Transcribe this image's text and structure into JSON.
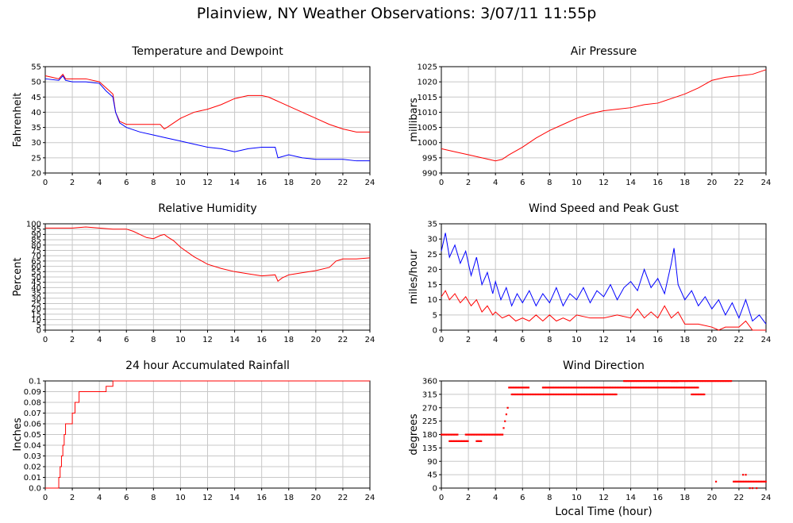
{
  "page": {
    "title": "Plainview, NY Weather Observations: 3/07/11 11:55p"
  },
  "colors": {
    "red": "#ff0000",
    "blue": "#0000ff"
  },
  "chart_data": [
    {
      "id": "temp",
      "type": "line",
      "title": "Temperature and Dewpoint",
      "xlabel": "",
      "ylabel": "Fahrenheit",
      "xlim": [
        0,
        24
      ],
      "ylim": [
        20,
        55
      ],
      "xticks": [
        "0",
        "2",
        "4",
        "6",
        "8",
        "10",
        "12",
        "14",
        "16",
        "18",
        "20",
        "22",
        "24"
      ],
      "yticks": [
        "20",
        "25",
        "30",
        "35",
        "40",
        "45",
        "50",
        "55"
      ],
      "grid": true,
      "legend": "none",
      "series": [
        {
          "color": "red",
          "x": [
            0,
            0.5,
            1,
            1.3,
            1.5,
            2,
            3,
            4,
            4.5,
            5,
            5.2,
            5.5,
            6,
            7,
            8,
            8.5,
            8.8,
            9,
            9.5,
            10,
            11,
            12,
            13,
            14,
            15,
            16,
            16.5,
            17,
            18,
            19,
            20,
            21,
            22,
            23,
            24
          ],
          "y": [
            52,
            51.5,
            51,
            52.5,
            51,
            51,
            51,
            50,
            48,
            46,
            40,
            37,
            36,
            36,
            36,
            36,
            34.5,
            35,
            36.5,
            38,
            40,
            41,
            42.5,
            44.5,
            45.5,
            45.5,
            45,
            44,
            42,
            40,
            38,
            36,
            34.5,
            33.5,
            33.5
          ]
        },
        {
          "color": "blue",
          "x": [
            0,
            1,
            1.3,
            1.5,
            2,
            3,
            4,
            4.5,
            5,
            5.2,
            5.5,
            6,
            7,
            8,
            9,
            10,
            11,
            12,
            13,
            14,
            15,
            16,
            17,
            17.2,
            18,
            19,
            20,
            21,
            22,
            23,
            24
          ],
          "y": [
            51,
            50.5,
            52,
            50.5,
            50,
            50,
            49.5,
            47,
            45,
            40,
            36.5,
            35,
            33.5,
            32.5,
            31.5,
            30.5,
            29.5,
            28.5,
            28,
            27,
            28,
            28.5,
            28.5,
            25,
            26,
            25,
            24.5,
            24.5,
            24.5,
            24,
            24
          ]
        }
      ]
    },
    {
      "id": "pressure",
      "type": "line",
      "title": "Air Pressure",
      "xlabel": "",
      "ylabel": "millibars",
      "xlim": [
        0,
        24
      ],
      "ylim": [
        990,
        1025
      ],
      "xticks": [
        "0",
        "2",
        "4",
        "6",
        "8",
        "10",
        "12",
        "14",
        "16",
        "18",
        "20",
        "22",
        "24"
      ],
      "yticks": [
        "990",
        "995",
        "1000",
        "1005",
        "1010",
        "1015",
        "1020",
        "1025"
      ],
      "grid": true,
      "legend": "none",
      "series": [
        {
          "color": "red",
          "x": [
            0,
            1,
            2,
            3,
            4,
            4.5,
            5,
            6,
            7,
            8,
            9,
            10,
            11,
            12,
            13,
            14,
            15,
            16,
            17,
            18,
            19,
            20,
            21,
            22,
            23,
            24
          ],
          "y": [
            998,
            997,
            996,
            995,
            994,
            994.5,
            996,
            998.5,
            1001.5,
            1004,
            1006,
            1008,
            1009.5,
            1010.5,
            1011,
            1011.5,
            1012.5,
            1013,
            1014.5,
            1016,
            1018,
            1020.5,
            1021.5,
            1022,
            1022.5,
            1024
          ]
        }
      ]
    },
    {
      "id": "humidity",
      "type": "line",
      "title": "Relative Humidity",
      "xlabel": "",
      "ylabel": "Percent",
      "xlim": [
        0,
        24
      ],
      "ylim": [
        0,
        100
      ],
      "xticks": [
        "0",
        "2",
        "4",
        "6",
        "8",
        "10",
        "12",
        "14",
        "16",
        "18",
        "20",
        "22",
        "24"
      ],
      "yticks": [
        "0",
        "5",
        "10",
        "15",
        "20",
        "25",
        "30",
        "35",
        "40",
        "45",
        "50",
        "55",
        "60",
        "65",
        "70",
        "75",
        "80",
        "85",
        "90",
        "95",
        "100"
      ],
      "grid": true,
      "legend": "none",
      "series": [
        {
          "color": "red",
          "x": [
            0,
            1,
            2,
            3,
            4,
            5,
            6,
            6.5,
            7,
            7.5,
            8,
            8.5,
            8.8,
            9,
            9.5,
            10,
            11,
            12,
            13,
            14,
            15,
            16,
            17,
            17.2,
            17.5,
            18,
            19,
            20,
            21,
            21.5,
            22,
            23,
            24
          ],
          "y": [
            96,
            96,
            96,
            97,
            96,
            95,
            95,
            93,
            90,
            87,
            86,
            89,
            90,
            88,
            84,
            78,
            69,
            62,
            58,
            55,
            53,
            51,
            52,
            46,
            49,
            52,
            54,
            56,
            59,
            65,
            67,
            67,
            68
          ]
        }
      ]
    },
    {
      "id": "wind",
      "type": "line",
      "title": "Wind Speed and Peak Gust",
      "xlabel": "",
      "ylabel": "miles/hour",
      "xlim": [
        0,
        24
      ],
      "ylim": [
        0,
        35
      ],
      "xticks": [
        "0",
        "2",
        "4",
        "6",
        "8",
        "10",
        "12",
        "14",
        "16",
        "18",
        "20",
        "22",
        "24"
      ],
      "yticks": [
        "0",
        "5",
        "10",
        "15",
        "20",
        "25",
        "30",
        "35"
      ],
      "grid": true,
      "legend": "none",
      "series": [
        {
          "color": "blue",
          "x": [
            0,
            0.3,
            0.6,
            1,
            1.4,
            1.8,
            2.2,
            2.6,
            3,
            3.4,
            3.8,
            4,
            4.4,
            4.8,
            5.2,
            5.6,
            6,
            6.5,
            7,
            7.5,
            8,
            8.5,
            9,
            9.5,
            10,
            10.5,
            11,
            11.5,
            12,
            12.5,
            13,
            13.5,
            14,
            14.5,
            15,
            15.5,
            16,
            16.5,
            17,
            17.2,
            17.5,
            18,
            18.5,
            19,
            19.5,
            20,
            20.5,
            21,
            21.5,
            22,
            22.5,
            23,
            23.5,
            24
          ],
          "y": [
            26,
            32,
            24,
            28,
            22,
            26,
            18,
            24,
            15,
            19,
            12,
            16,
            10,
            14,
            8,
            12,
            9,
            13,
            8,
            12,
            9,
            14,
            8,
            12,
            10,
            14,
            9,
            13,
            11,
            15,
            10,
            14,
            16,
            13,
            20,
            14,
            17,
            12,
            22,
            27,
            15,
            10,
            13,
            8,
            11,
            7,
            10,
            5,
            9,
            4,
            10,
            3,
            5,
            2
          ]
        },
        {
          "color": "red",
          "x": [
            0,
            0.3,
            0.6,
            1,
            1.4,
            1.8,
            2.2,
            2.6,
            3,
            3.4,
            3.8,
            4,
            4.5,
            5,
            5.5,
            6,
            6.5,
            7,
            7.5,
            8,
            8.5,
            9,
            9.5,
            10,
            11,
            12,
            13,
            14,
            14.5,
            15,
            15.5,
            16,
            16.5,
            17,
            17.5,
            18,
            19,
            20,
            20.5,
            21,
            22,
            22.5,
            23,
            24
          ],
          "y": [
            11,
            13,
            10,
            12,
            9,
            11,
            8,
            10,
            6,
            8,
            5,
            6,
            4,
            5,
            3,
            4,
            3,
            5,
            3,
            5,
            3,
            4,
            3,
            5,
            4,
            4,
            5,
            4,
            7,
            4,
            6,
            4,
            8,
            4,
            6,
            2,
            2,
            1,
            0,
            1,
            1,
            3,
            0,
            0
          ]
        }
      ]
    },
    {
      "id": "rain",
      "type": "line",
      "title": "24 hour Accumulated Rainfall",
      "xlabel": "",
      "ylabel": "Inches",
      "xlim": [
        0,
        24
      ],
      "ylim": [
        0,
        0.1
      ],
      "xticks": [
        "0",
        "2",
        "4",
        "6",
        "8",
        "10",
        "12",
        "14",
        "16",
        "18",
        "20",
        "22",
        "24"
      ],
      "yticks": [
        "0.0",
        "0.01",
        "0.02",
        "0.03",
        "0.04",
        "0.05",
        "0.06",
        "0.07",
        "0.08",
        "0.09",
        "0.1"
      ],
      "grid": true,
      "legend": "none",
      "series": [
        {
          "color": "red",
          "step": true,
          "x": [
            0,
            0.9,
            1.0,
            1.1,
            1.2,
            1.3,
            1.4,
            1.5,
            2.0,
            2.2,
            2.5,
            2.8,
            3.0,
            4.0,
            4.5,
            5.0,
            5.1,
            24
          ],
          "y": [
            0,
            0,
            0.01,
            0.02,
            0.03,
            0.04,
            0.05,
            0.06,
            0.07,
            0.08,
            0.09,
            0.09,
            0.09,
            0.09,
            0.095,
            0.1,
            0.1,
            0.1
          ]
        }
      ]
    },
    {
      "id": "direction",
      "type": "scatter",
      "title": "Wind Direction",
      "xlabel": "Local Time (hour)",
      "ylabel": "degrees",
      "xlim": [
        0,
        24
      ],
      "ylim": [
        0,
        360
      ],
      "xticks": [
        "0",
        "2",
        "4",
        "6",
        "8",
        "10",
        "12",
        "14",
        "16",
        "18",
        "20",
        "22",
        "24"
      ],
      "yticks": [
        "0",
        "45",
        "90",
        "135",
        "180",
        "225",
        "270",
        "315",
        "360"
      ],
      "grid": true,
      "legend": "none",
      "series": [
        {
          "color": "red",
          "segments": [
            {
              "x0": 0.0,
              "x1": 1.2,
              "y": 180
            },
            {
              "x0": 0.6,
              "x1": 2.0,
              "y": 158
            },
            {
              "x0": 1.8,
              "x1": 4.6,
              "y": 180
            },
            {
              "x0": 2.6,
              "x1": 3.0,
              "y": 158
            },
            {
              "x0": 5.0,
              "x1": 6.5,
              "y": 338
            },
            {
              "x0": 5.2,
              "x1": 13.0,
              "y": 315
            },
            {
              "x0": 7.5,
              "x1": 12.5,
              "y": 338
            },
            {
              "x0": 12.5,
              "x1": 16.0,
              "y": 338
            },
            {
              "x0": 13.5,
              "x1": 17.5,
              "y": 360
            },
            {
              "x0": 16.0,
              "x1": 19.0,
              "y": 338
            },
            {
              "x0": 17.0,
              "x1": 21.5,
              "y": 360
            },
            {
              "x0": 18.5,
              "x1": 19.5,
              "y": 315
            },
            {
              "x0": 21.6,
              "x1": 24.0,
              "y": 22
            }
          ],
          "points": [
            {
              "x": 4.6,
              "y": 202
            },
            {
              "x": 4.7,
              "y": 225
            },
            {
              "x": 4.8,
              "y": 248
            },
            {
              "x": 4.9,
              "y": 270
            },
            {
              "x": 20.3,
              "y": 22
            },
            {
              "x": 22.3,
              "y": 45
            },
            {
              "x": 22.5,
              "y": 45
            },
            {
              "x": 22.8,
              "y": 0
            },
            {
              "x": 23.0,
              "y": 0
            },
            {
              "x": 23.3,
              "y": 0
            }
          ]
        }
      ]
    }
  ]
}
